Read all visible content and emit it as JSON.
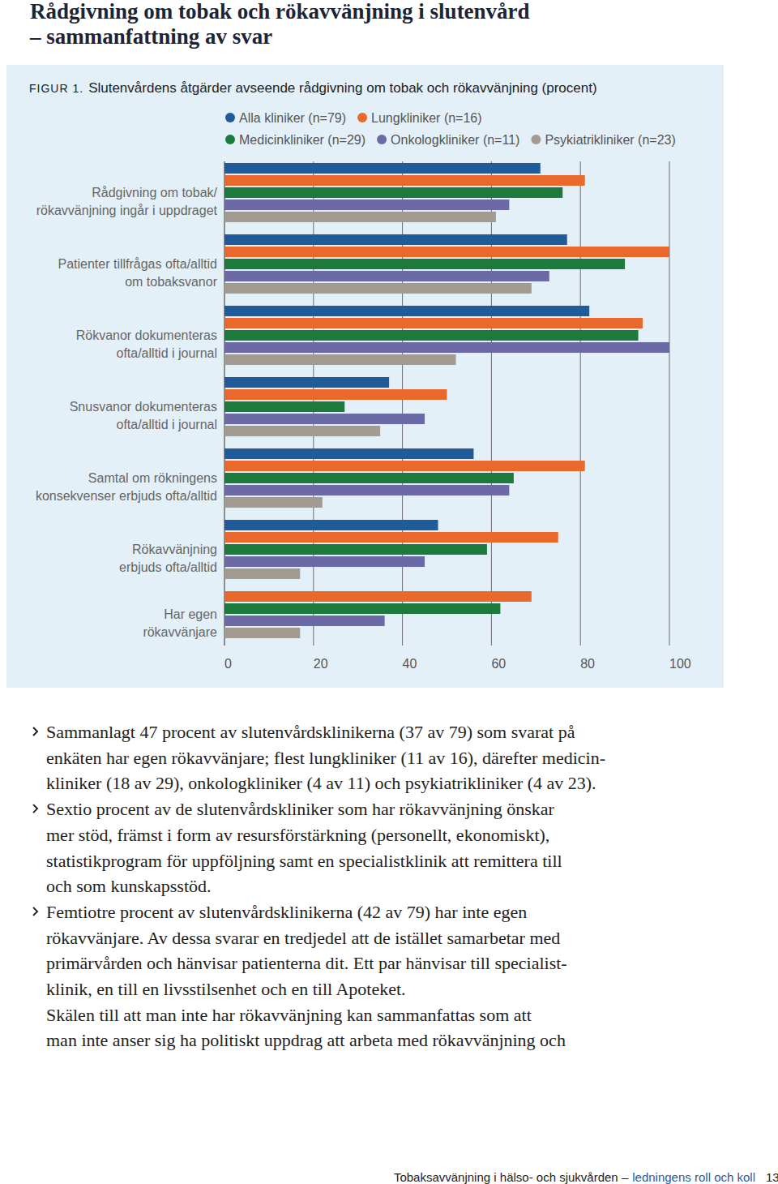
{
  "title": [
    "Rådgivning om tobak och rökavvänjning i slutenvård",
    "– sammanfattning av svar"
  ],
  "figure_label": "FIGUR 1.",
  "chart_data": {
    "type": "bar",
    "orientation": "horizontal",
    "title": "Slutenvårdens åtgärder avseende rådgivning om tobak och rökavvänjning (procent)",
    "categories": [
      "Rådgivning om  tobak/\nrökavvänjning ingår i uppdraget",
      "Patienter tillfrågas ofta/alltid\nom tobaksvanor",
      "Rökvanor dokumenteras\nofta/alltid i journal",
      "Snusvanor dokumenteras\nofta/alltid i journal",
      "Samtal om rökningens\nkonsekvenser erbjuds ofta/alltid",
      "Rökavvänjning\nerbjuds ofta/alltid",
      "Har egen\nrökavvänjare"
    ],
    "series": [
      {
        "name": "Alla kliniker (n=79)",
        "color": "#1f5c99",
        "values": [
          71,
          77,
          82,
          37,
          56,
          48,
          null
        ]
      },
      {
        "name": "Lungkliniker (n=16)",
        "color": "#e8692b",
        "values": [
          81,
          100,
          94,
          50,
          81,
          75,
          69
        ]
      },
      {
        "name": "Medicinkliniker (n=29)",
        "color": "#1b7a3c",
        "values": [
          76,
          90,
          93,
          27,
          65,
          59,
          62
        ]
      },
      {
        "name": "Onkologkliniker (n=11)",
        "color": "#6b6aa6",
        "values": [
          64,
          73,
          100,
          45,
          64,
          45,
          36
        ]
      },
      {
        "name": "Psykiatrikliniker (n=23)",
        "color": "#a39a91",
        "values": [
          61,
          69,
          52,
          35,
          22,
          17,
          17
        ]
      }
    ],
    "xlim": [
      0,
      100
    ],
    "xticks": [
      0,
      20,
      40,
      60,
      80,
      100
    ],
    "grid": true,
    "legend": "top"
  },
  "bullets": [
    [
      "Sammanlagt 47 procent av slutenvårdsklinikerna (37 av 79) som svarat på",
      "enkäten har egen rökavvänjare; flest lungkliniker (11 av 16), därefter medicin-",
      "kliniker (18 av 29), onkologkliniker (4 av 11) och psykiatrikliniker (4 av 23)."
    ],
    [
      "Sextio procent av de slutenvårdskliniker som har rökavvänjning önskar",
      "mer stöd, främst i form av resursförstärkning (personellt, ekonomiskt),",
      "statistikprogram för uppföljning samt en specialistklinik att remittera till",
      "och som kunskapsstöd."
    ],
    [
      "Femtiotre procent av slutenvårdsklinikerna (42 av 79) har inte egen",
      "rökavvänjare. Av dessa svarar en tredjedel att de istället samarbetar med",
      "primärvården och hänvisar patienterna dit. Ett par hänvisar till specialist-",
      "klinik, en till en livsstilsenhet och en till Apoteket."
    ]
  ],
  "paragraph": [
    "Skälen till att man inte har rökavvänjning kan sammanfattas som att",
    "man inte anser sig ha politiskt uppdrag att arbeta med rökavvänjning och"
  ],
  "footer": {
    "text": "Tobaksavvänjning i hälso- och sjukvården –",
    "highlight": "ledningens roll och koll",
    "page": "13"
  }
}
